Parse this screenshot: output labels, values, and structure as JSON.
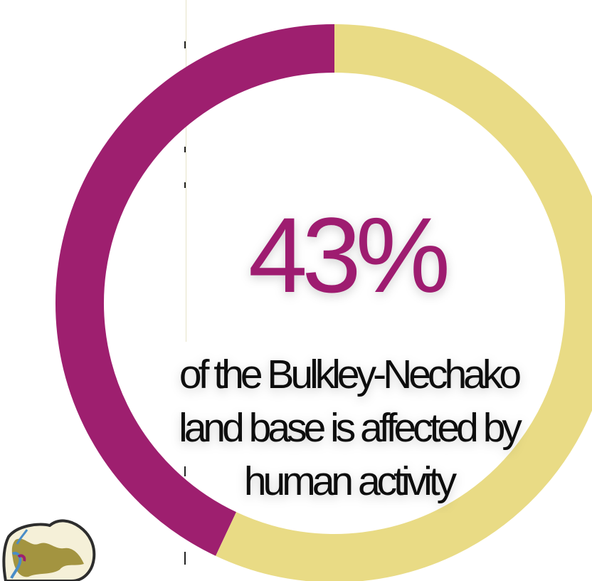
{
  "chart_data": {
    "type": "pie",
    "style": "donut",
    "slices": [
      {
        "label": "affected by human activity",
        "value": 43,
        "color": "#9e1f6f"
      },
      {
        "label": "",
        "value": 57,
        "color": "#e9db85"
      }
    ],
    "center_value": "43%",
    "caption_lines": [
      "of the Bulkley-Nechako",
      "land base is affected by",
      "human activity"
    ]
  },
  "colors": {
    "accent": "#9e1f6f",
    "remainder": "#e9db85",
    "text": "#111111"
  }
}
